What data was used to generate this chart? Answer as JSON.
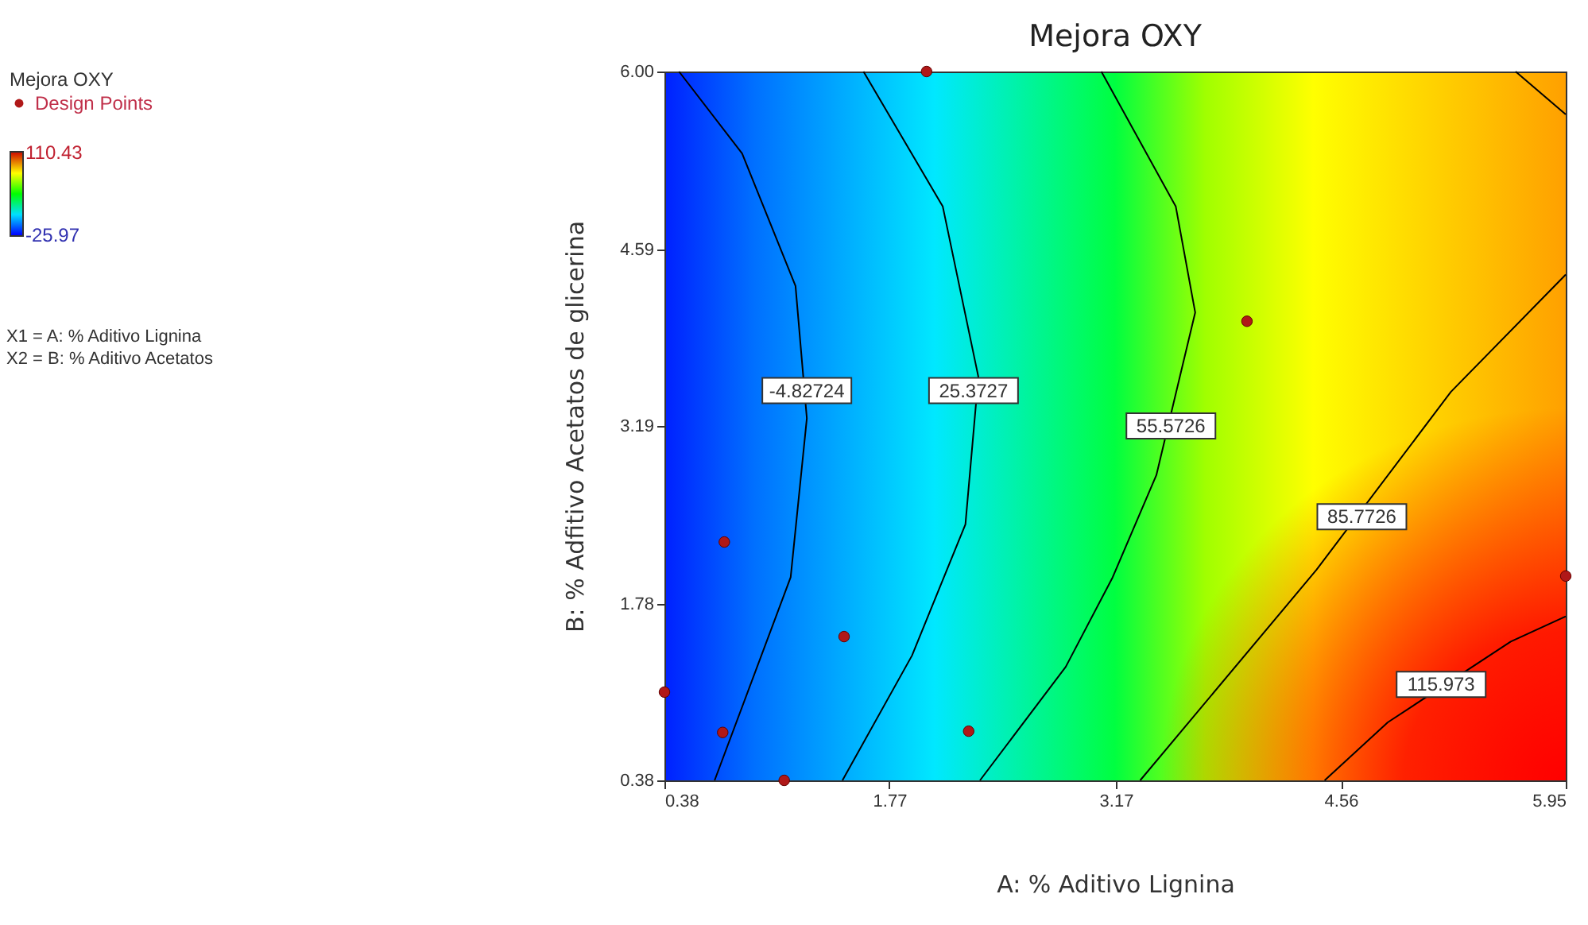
{
  "chart_data": {
    "type": "scatter",
    "title": "Mejora OXY",
    "xlabel": "A: % Aditivo Lignina",
    "ylabel": "B: % Adfitivo Acetatos de glicerina",
    "legend_title": "Mejora OXY",
    "legend": "left",
    "grid": false,
    "xlim": [
      0.38,
      5.95
    ],
    "ylim": [
      0.38,
      6
    ],
    "xticks": [
      0.38,
      1.77,
      3.17,
      4.56,
      5.95
    ],
    "yticks": [
      0.38,
      1.78,
      3.19,
      4.59,
      {
        "value": 6,
        "label": "6.00"
      }
    ],
    "clim": [
      -25.97,
      110.43
    ],
    "cticks": [
      -25.97,
      110.43
    ],
    "series": [
      {
        "type": "line",
        "color": "#000000",
        "marker": "none",
        "x": [
          0.47,
          0.86,
          1.19,
          1.26,
          1.16,
          0.69
        ],
        "values": [
          6,
          5.35,
          4.3,
          3.25,
          1.99,
          0.38
        ]
      },
      {
        "type": "line",
        "color": "#000000",
        "marker": "none",
        "x": [
          1.61,
          2.1,
          2.32,
          2.24,
          1.91,
          1.48
        ],
        "values": [
          6,
          4.93,
          3.58,
          2.41,
          1.37,
          0.38
        ]
      },
      {
        "type": "line",
        "color": "#000000",
        "marker": "none",
        "x": [
          3.08,
          3.54,
          3.66,
          3.42,
          3.15,
          2.86,
          2.33
        ],
        "values": [
          6,
          4.93,
          4.09,
          2.8,
          1.99,
          1.28,
          0.38
        ]
      },
      {
        "type": "line",
        "color": "#000000",
        "marker": "none",
        "x": [
          3.32,
          4.41,
          5.24,
          5.95
        ],
        "values": [
          0.38,
          2.05,
          3.46,
          4.39
        ]
      },
      {
        "type": "line",
        "color": "#000000",
        "marker": "none",
        "x": [
          4.46,
          4.85,
          5.61,
          5.95
        ],
        "values": [
          0.38,
          0.84,
          1.48,
          1.68
        ]
      },
      {
        "type": "line",
        "color": "#000000",
        "marker": "none",
        "x": [
          5.64,
          5.95
        ],
        "values": [
          6,
          5.66
        ]
      },
      {
        "type": "scatter",
        "name": "Design Points",
        "color": "#b01818",
        "marker": "circle",
        "x": [
          2,
          3.98,
          0.75,
          1.49,
          0.38,
          0.74,
          2.26,
          1.12,
          5.95
        ],
        "values": [
          6,
          4.02,
          2.27,
          1.52,
          1.08,
          0.76,
          0.77,
          0.38,
          2
        ]
      }
    ],
    "annotations": [
      {
        "text": "-4.82724",
        "x": 1.26,
        "y": 3.47
      },
      {
        "text": "25.3727",
        "x": 2.29,
        "y": 3.47
      },
      {
        "text": "55.5726",
        "x": 3.51,
        "y": 3.19
      },
      {
        "text": "85.7726",
        "x": 4.69,
        "y": 2.47
      },
      {
        "text": "115.973",
        "x": 5.18,
        "y": 1.14
      },
      "X1 = A: % Aditivo Lignina",
      "X2 = B: % Aditivo Acetatos"
    ]
  }
}
